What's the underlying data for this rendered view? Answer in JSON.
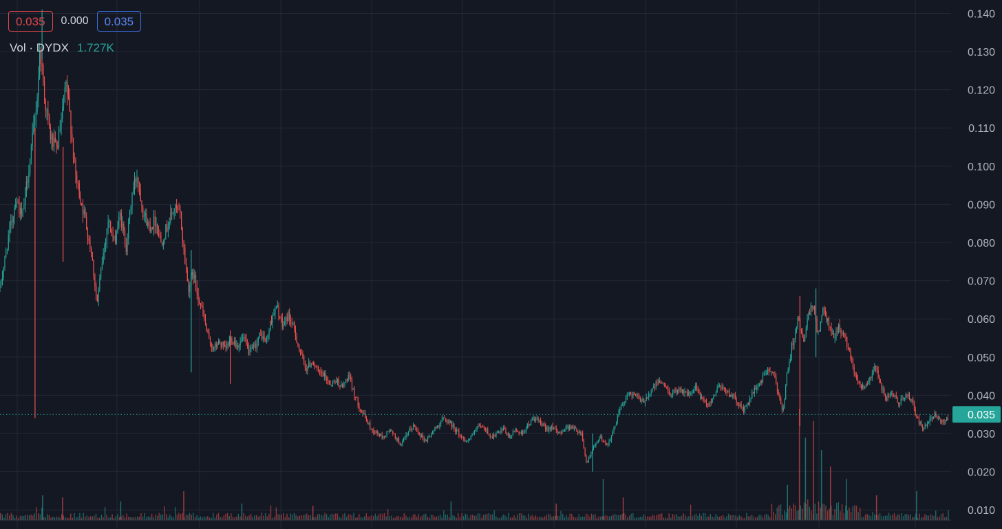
{
  "legend": {
    "open_value": "0.035",
    "change_value": "0.000",
    "close_value": "0.035",
    "volume_label": "Vol · DYDX",
    "volume_value": "1.727K"
  },
  "colors": {
    "background": "#141823",
    "grid": "#232836",
    "up": "#26a69a",
    "down": "#ef5350",
    "price_line": "#26a69a",
    "red_box": "#e0464e",
    "blue_box": "#3d6fe0",
    "axis_text": "#b2b5be"
  },
  "chart_data": {
    "type": "candlestick",
    "ylim": [
      0.005,
      0.1435
    ],
    "y_ticks": [
      "0.140",
      "0.130",
      "0.120",
      "0.110",
      "0.100",
      "0.090",
      "0.080",
      "0.070",
      "0.060",
      "0.050",
      "0.040",
      "0.030",
      "0.020",
      "0.010"
    ],
    "current_price": 0.035,
    "current_price_label": "0.035",
    "price_path": [
      [
        0.0,
        0.068
      ],
      [
        0.4,
        0.074
      ],
      [
        0.8,
        0.081
      ],
      [
        1.2,
        0.086
      ],
      [
        1.6,
        0.092
      ],
      [
        2.2,
        0.086
      ],
      [
        2.8,
        0.098
      ],
      [
        3.3,
        0.108
      ],
      [
        3.7,
        0.118
      ],
      [
        4.0,
        0.131
      ],
      [
        4.5,
        0.117
      ],
      [
        5.0,
        0.108
      ],
      [
        5.6,
        0.104
      ],
      [
        6.1,
        0.111
      ],
      [
        6.6,
        0.121
      ],
      [
        7.0,
        0.113
      ],
      [
        7.5,
        0.098
      ],
      [
        8.0,
        0.092
      ],
      [
        8.6,
        0.085
      ],
      [
        9.2,
        0.076
      ],
      [
        9.7,
        0.064
      ],
      [
        10.2,
        0.075
      ],
      [
        10.8,
        0.086
      ],
      [
        11.4,
        0.08
      ],
      [
        12.0,
        0.087
      ],
      [
        12.6,
        0.079
      ],
      [
        13.2,
        0.093
      ],
      [
        13.7,
        0.098
      ],
      [
        14.3,
        0.088
      ],
      [
        14.9,
        0.084
      ],
      [
        15.5,
        0.086
      ],
      [
        16.1,
        0.08
      ],
      [
        16.8,
        0.085
      ],
      [
        17.4,
        0.089
      ],
      [
        18.0,
        0.087
      ],
      [
        18.4,
        0.077
      ],
      [
        18.8,
        0.068
      ],
      [
        19.3,
        0.072
      ],
      [
        19.8,
        0.066
      ],
      [
        20.3,
        0.061
      ],
      [
        20.8,
        0.055
      ],
      [
        21.3,
        0.052
      ],
      [
        21.9,
        0.054
      ],
      [
        22.5,
        0.052
      ],
      [
        23.1,
        0.055
      ],
      [
        23.7,
        0.053
      ],
      [
        24.3,
        0.055
      ],
      [
        24.9,
        0.051
      ],
      [
        25.5,
        0.053
      ],
      [
        26.0,
        0.056
      ],
      [
        26.6,
        0.054
      ],
      [
        27.2,
        0.061
      ],
      [
        27.7,
        0.063
      ],
      [
        28.2,
        0.058
      ],
      [
        28.8,
        0.061
      ],
      [
        29.4,
        0.057
      ],
      [
        30.0,
        0.051
      ],
      [
        30.6,
        0.047
      ],
      [
        31.2,
        0.049
      ],
      [
        31.8,
        0.046
      ],
      [
        32.4,
        0.045
      ],
      [
        33.0,
        0.043
      ],
      [
        33.6,
        0.044
      ],
      [
        34.2,
        0.042
      ],
      [
        34.8,
        0.045
      ],
      [
        35.3,
        0.041
      ],
      [
        35.9,
        0.037
      ],
      [
        36.5,
        0.034
      ],
      [
        37.1,
        0.031
      ],
      [
        37.7,
        0.03
      ],
      [
        38.3,
        0.029
      ],
      [
        38.9,
        0.031
      ],
      [
        39.5,
        0.029
      ],
      [
        40.1,
        0.027
      ],
      [
        40.7,
        0.03
      ],
      [
        41.3,
        0.032
      ],
      [
        41.9,
        0.03
      ],
      [
        42.5,
        0.028
      ],
      [
        43.1,
        0.03
      ],
      [
        43.7,
        0.032
      ],
      [
        44.3,
        0.034
      ],
      [
        44.9,
        0.033
      ],
      [
        45.5,
        0.031
      ],
      [
        46.1,
        0.029
      ],
      [
        46.7,
        0.028
      ],
      [
        47.3,
        0.03
      ],
      [
        47.9,
        0.032
      ],
      [
        48.5,
        0.031
      ],
      [
        49.1,
        0.029
      ],
      [
        49.7,
        0.03
      ],
      [
        50.3,
        0.031
      ],
      [
        50.9,
        0.029
      ],
      [
        51.5,
        0.031
      ],
      [
        52.1,
        0.03
      ],
      [
        52.7,
        0.032
      ],
      [
        53.3,
        0.034
      ],
      [
        53.9,
        0.033
      ],
      [
        54.5,
        0.031
      ],
      [
        55.1,
        0.032
      ],
      [
        55.7,
        0.03
      ],
      [
        56.3,
        0.031
      ],
      [
        56.9,
        0.032
      ],
      [
        57.5,
        0.031
      ],
      [
        58.1,
        0.03
      ],
      [
        58.6,
        0.022
      ],
      [
        59.0,
        0.025
      ],
      [
        59.5,
        0.027
      ],
      [
        60.0,
        0.029
      ],
      [
        60.6,
        0.027
      ],
      [
        61.2,
        0.03
      ],
      [
        61.8,
        0.036
      ],
      [
        62.3,
        0.038
      ],
      [
        62.9,
        0.041
      ],
      [
        63.5,
        0.04
      ],
      [
        64.1,
        0.038
      ],
      [
        64.7,
        0.04
      ],
      [
        65.3,
        0.042
      ],
      [
        65.9,
        0.044
      ],
      [
        66.5,
        0.042
      ],
      [
        67.1,
        0.04
      ],
      [
        67.7,
        0.042
      ],
      [
        68.3,
        0.041
      ],
      [
        68.9,
        0.04
      ],
      [
        69.5,
        0.042
      ],
      [
        70.1,
        0.039
      ],
      [
        70.7,
        0.037
      ],
      [
        71.3,
        0.04
      ],
      [
        71.9,
        0.043
      ],
      [
        72.5,
        0.041
      ],
      [
        73.1,
        0.04
      ],
      [
        73.7,
        0.038
      ],
      [
        74.3,
        0.036
      ],
      [
        74.9,
        0.039
      ],
      [
        75.5,
        0.042
      ],
      [
        76.1,
        0.044
      ],
      [
        76.7,
        0.047
      ],
      [
        77.3,
        0.045
      ],
      [
        77.8,
        0.04
      ],
      [
        78.2,
        0.036
      ],
      [
        78.6,
        0.045
      ],
      [
        79.1,
        0.053
      ],
      [
        79.7,
        0.06
      ],
      [
        80.2,
        0.054
      ],
      [
        80.7,
        0.06
      ],
      [
        81.2,
        0.064
      ],
      [
        81.7,
        0.056
      ],
      [
        82.2,
        0.062
      ],
      [
        82.7,
        0.059
      ],
      [
        83.2,
        0.055
      ],
      [
        83.8,
        0.058
      ],
      [
        84.4,
        0.055
      ],
      [
        85.0,
        0.05
      ],
      [
        85.6,
        0.044
      ],
      [
        86.2,
        0.042
      ],
      [
        86.8,
        0.044
      ],
      [
        87.4,
        0.048
      ],
      [
        88.0,
        0.042
      ],
      [
        88.6,
        0.039
      ],
      [
        89.2,
        0.04
      ],
      [
        89.8,
        0.038
      ],
      [
        90.4,
        0.04
      ],
      [
        91.0,
        0.039
      ],
      [
        91.6,
        0.034
      ],
      [
        92.2,
        0.031
      ],
      [
        92.8,
        0.033
      ],
      [
        93.4,
        0.035
      ],
      [
        94.0,
        0.033
      ],
      [
        94.7,
        0.034
      ]
    ],
    "spikes": [
      [
        3.5,
        0.034,
        0.11
      ],
      [
        4.2,
        0.128,
        0.141
      ],
      [
        6.3,
        0.075,
        0.105
      ],
      [
        19.1,
        0.046,
        0.078
      ],
      [
        23.0,
        0.043,
        0.057
      ],
      [
        59.2,
        0.02,
        0.03
      ],
      [
        79.9,
        0.032,
        0.066
      ],
      [
        81.5,
        0.05,
        0.068
      ]
    ],
    "volume_spikes": [
      [
        4.2,
        0.6
      ],
      [
        6.2,
        0.55
      ],
      [
        12.0,
        0.45
      ],
      [
        18.3,
        0.7
      ],
      [
        24.1,
        0.4
      ],
      [
        31.2,
        0.35
      ],
      [
        45.0,
        0.45
      ],
      [
        55.5,
        0.4
      ],
      [
        60.2,
        1.0
      ],
      [
        62.2,
        0.55
      ],
      [
        78.6,
        0.85
      ],
      [
        79.8,
        2.7
      ],
      [
        80.4,
        2.0
      ],
      [
        81.2,
        2.4
      ],
      [
        82.0,
        1.7
      ],
      [
        82.9,
        1.3
      ],
      [
        84.5,
        1.0
      ],
      [
        87.5,
        0.6
      ],
      [
        91.5,
        0.7
      ]
    ]
  }
}
